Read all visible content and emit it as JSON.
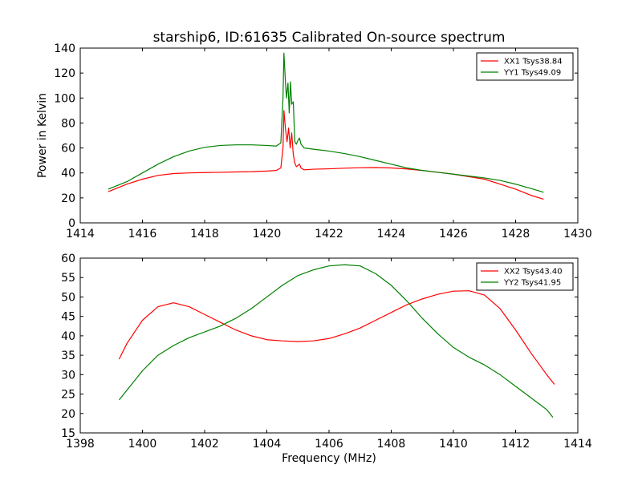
{
  "chart_data": [
    {
      "type": "line",
      "title": "starship6, ID:61635 Calibrated On-source spectrum",
      "xlabel": "",
      "ylabel": "Power in Kelvin",
      "xlim": [
        1414,
        1430
      ],
      "ylim": [
        0,
        140
      ],
      "xticks": [
        "1414",
        "1416",
        "1418",
        "1420",
        "1422",
        "1424",
        "1426",
        "1428",
        "1430"
      ],
      "yticks": [
        "0",
        "20",
        "40",
        "60",
        "80",
        "100",
        "120",
        "140"
      ],
      "legend_position": "top-right",
      "grid": false,
      "series": [
        {
          "name": "XX1 Tsys38.84",
          "color": "#ff0000",
          "x": [
            1414.9,
            1415.5,
            1416,
            1416.5,
            1417,
            1417.5,
            1418,
            1418.5,
            1419,
            1419.5,
            1420,
            1420.3,
            1420.45,
            1420.52,
            1420.55,
            1420.6,
            1420.65,
            1420.7,
            1420.75,
            1420.8,
            1420.85,
            1420.9,
            1420.95,
            1421.0,
            1421.05,
            1421.1,
            1421.2,
            1421.5,
            1422,
            1422.5,
            1423,
            1423.5,
            1424,
            1424.5,
            1425,
            1425.5,
            1426,
            1426.5,
            1427,
            1427.5,
            1428,
            1428.5,
            1428.9
          ],
          "y": [
            25,
            31,
            35,
            38,
            39.5,
            40,
            40.3,
            40.5,
            40.8,
            41,
            41.5,
            42,
            44,
            60,
            90,
            75,
            65,
            76,
            60,
            72,
            55,
            48,
            45,
            46,
            47,
            44,
            42.5,
            43,
            43.3,
            43.8,
            44.2,
            44.3,
            44,
            43.2,
            42,
            40.5,
            39,
            37,
            35,
            31,
            27,
            22,
            19
          ]
        },
        {
          "name": "YY1 Tsys49.09",
          "color": "#008000",
          "x": [
            1414.9,
            1415.5,
            1416,
            1416.5,
            1417,
            1417.5,
            1418,
            1418.5,
            1419,
            1419.5,
            1420,
            1420.3,
            1420.45,
            1420.52,
            1420.55,
            1420.6,
            1420.63,
            1420.68,
            1420.72,
            1420.76,
            1420.8,
            1420.85,
            1420.9,
            1420.95,
            1421.0,
            1421.05,
            1421.1,
            1421.2,
            1421.5,
            1422,
            1422.5,
            1423,
            1423.5,
            1424,
            1424.5,
            1425,
            1425.5,
            1426,
            1426.5,
            1427,
            1427.5,
            1428,
            1428.5,
            1428.9
          ],
          "y": [
            27,
            33,
            40,
            47,
            53,
            57.5,
            60.5,
            62,
            62.5,
            62.5,
            62,
            61.5,
            64,
            100,
            136,
            112,
            100,
            112,
            88,
            113,
            95,
            97,
            65,
            63,
            66,
            68,
            63,
            60,
            59,
            57.5,
            55.5,
            53,
            50,
            47,
            44,
            42,
            40.5,
            39,
            37.5,
            36,
            34,
            31,
            27.5,
            24.5
          ]
        }
      ]
    },
    {
      "type": "line",
      "title": "",
      "xlabel": "Frequency (MHz)",
      "ylabel": "",
      "xlim": [
        1398,
        1414
      ],
      "ylim": [
        15,
        60
      ],
      "xticks": [
        "1398",
        "1400",
        "1402",
        "1404",
        "1406",
        "1408",
        "1410",
        "1412",
        "1414"
      ],
      "yticks": [
        "15",
        "20",
        "25",
        "30",
        "35",
        "40",
        "45",
        "50",
        "55",
        "60"
      ],
      "legend_position": "top-right",
      "grid": false,
      "series": [
        {
          "name": "XX2 Tsys43.40",
          "color": "#ff0000",
          "x": [
            1399.25,
            1399.5,
            1400,
            1400.5,
            1401,
            1401.5,
            1402,
            1402.5,
            1403,
            1403.5,
            1404,
            1404.5,
            1405,
            1405.5,
            1406,
            1406.5,
            1407,
            1407.5,
            1408,
            1408.5,
            1409,
            1409.5,
            1410,
            1410.5,
            1411,
            1411.5,
            1412,
            1412.5,
            1413,
            1413.25
          ],
          "y": [
            34,
            38,
            44,
            47.5,
            48.5,
            47.5,
            45.5,
            43.5,
            41.5,
            40,
            39,
            38.7,
            38.5,
            38.7,
            39.3,
            40.5,
            42,
            44,
            46,
            48,
            49.5,
            50.7,
            51.5,
            51.6,
            50.5,
            47,
            41.5,
            35.5,
            30,
            27.5
          ]
        },
        {
          "name": "YY2 Tsys41.95",
          "color": "#008000",
          "x": [
            1399.25,
            1399.5,
            1400,
            1400.5,
            1401,
            1401.5,
            1402,
            1402.5,
            1403,
            1403.5,
            1404,
            1404.5,
            1405,
            1405.5,
            1406,
            1406.5,
            1407,
            1407.5,
            1408,
            1408.5,
            1409,
            1409.5,
            1410,
            1410.5,
            1411,
            1411.5,
            1412,
            1412.5,
            1413,
            1413.2
          ],
          "y": [
            23.5,
            26,
            31,
            35,
            37.5,
            39.5,
            41,
            42.5,
            44.5,
            47,
            50,
            53,
            55.5,
            57,
            58,
            58.3,
            58,
            56,
            53,
            49,
            44.5,
            40.5,
            37,
            34.5,
            32.5,
            30,
            27,
            24,
            21,
            19
          ]
        }
      ]
    }
  ]
}
